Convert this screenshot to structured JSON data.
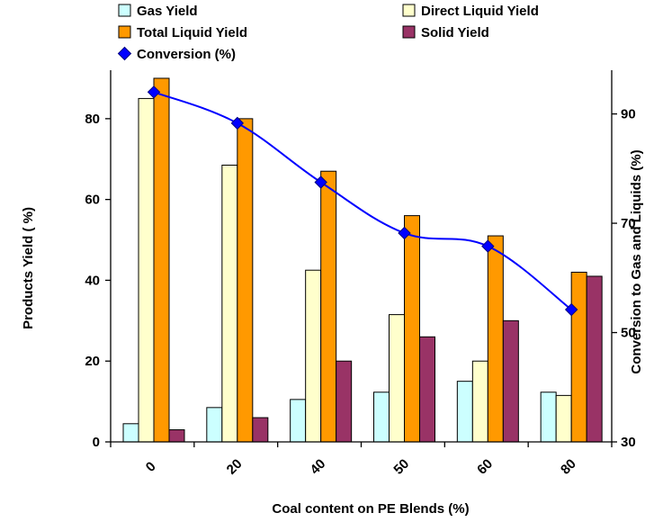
{
  "chart_data": {
    "type": "bar",
    "categories": [
      "0",
      "20",
      "40",
      "50",
      "60",
      "80"
    ],
    "xlabel": "Coal content on PE Blends (%)",
    "ylabel": "Products   Yield ( %)",
    "y2label": "Conversion to Gas and Liquids (%)",
    "ylim": [
      0,
      92
    ],
    "y2lim": [
      30,
      98
    ],
    "yticks": [
      0,
      20,
      40,
      60,
      80
    ],
    "y2ticks": [
      30,
      50,
      70,
      90
    ],
    "grid": false,
    "legend_position": "top",
    "series": [
      {
        "name": "Gas Yield",
        "type": "bar",
        "axis": "left",
        "color": "#ccffff",
        "values": [
          4.5,
          8.5,
          10.5,
          12.3,
          15,
          12.3
        ]
      },
      {
        "name": "Direct Liquid Yield",
        "type": "bar",
        "axis": "left",
        "color": "#ffffcc",
        "values": [
          85,
          68.5,
          42.5,
          31.5,
          20,
          11.5
        ]
      },
      {
        "name": "Total Liquid Yield",
        "type": "bar",
        "axis": "left",
        "color": "#ff9900",
        "values": [
          90,
          80,
          67,
          56,
          51,
          42
        ]
      },
      {
        "name": "Solid Yield",
        "type": "bar",
        "axis": "left",
        "color": "#993366",
        "values": [
          3,
          6,
          20,
          26,
          30,
          41
        ]
      },
      {
        "name": "Conversion (%)",
        "type": "line",
        "axis": "right",
        "color": "#0000ff",
        "marker": "diamond",
        "values": [
          94,
          88.3,
          77.5,
          68.2,
          65.8,
          54.2
        ]
      }
    ]
  }
}
